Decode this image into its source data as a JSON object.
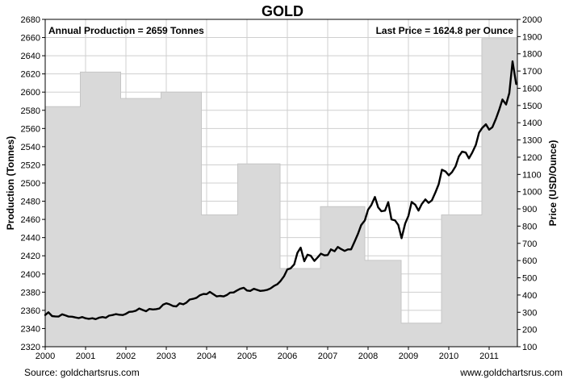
{
  "chart_data": {
    "type": "area",
    "title": "GOLD",
    "ylabel": "Production (Tonnes)",
    "y2label": "Price (USD/Ounce)",
    "xlim": [
      2000,
      2011.7
    ],
    "ylim": [
      2320,
      2680
    ],
    "y2lim": [
      100,
      2000
    ],
    "grid": true,
    "xticks": [
      "2000",
      "2001",
      "2002",
      "2003",
      "2004",
      "2005",
      "2006",
      "2007",
      "2008",
      "2009",
      "2010",
      "2011"
    ],
    "yticks": [
      "2320",
      "2340",
      "2360",
      "2380",
      "2400",
      "2420",
      "2440",
      "2460",
      "2480",
      "2500",
      "2520",
      "2540",
      "2560",
      "2580",
      "2600",
      "2620",
      "2640",
      "2660",
      "2680"
    ],
    "y2ticks": [
      "100",
      "200",
      "300",
      "400",
      "500",
      "600",
      "700",
      "800",
      "900",
      "1000",
      "1100",
      "1200",
      "1300",
      "1400",
      "1500",
      "1600",
      "1700",
      "1800",
      "1900",
      "2000"
    ],
    "annotations": {
      "left": "Annual Production = 2659 Tonnes",
      "right": "Last Price = 1624.8 per Ounce"
    },
    "footer": {
      "source": "Source:  goldchartsrus.com",
      "site": "www.goldchartsrus.com"
    },
    "series": [
      {
        "kind": "production",
        "axis": "left",
        "x": [
          2000,
          2000.87,
          2000.87,
          2001.87,
          2001.87,
          2002.87,
          2002.87,
          2003.87,
          2003.87,
          2004.77,
          2004.77,
          2005.82,
          2005.82,
          2006.82,
          2006.82,
          2007.92,
          2007.92,
          2008.82,
          2008.82,
          2009.82,
          2009.82,
          2010.82,
          2010.82,
          2011.7
        ],
        "y": [
          2584,
          2584,
          2622,
          2622,
          2593,
          2593,
          2600,
          2600,
          2465,
          2465,
          2521,
          2521,
          2406,
          2406,
          2474,
          2474,
          2415,
          2415,
          2346,
          2346,
          2465,
          2465,
          2659,
          2659
        ]
      },
      {
        "kind": "price",
        "axis": "right",
        "x": [
          2000.0,
          2000.08,
          2000.17,
          2000.25,
          2000.33,
          2000.42,
          2000.5,
          2000.58,
          2000.67,
          2000.75,
          2000.83,
          2000.92,
          2001.0,
          2001.08,
          2001.17,
          2001.25,
          2001.33,
          2001.42,
          2001.5,
          2001.58,
          2001.67,
          2001.75,
          2001.83,
          2001.92,
          2002.0,
          2002.08,
          2002.17,
          2002.25,
          2002.33,
          2002.42,
          2002.5,
          2002.58,
          2002.67,
          2002.75,
          2002.83,
          2002.92,
          2003.0,
          2003.08,
          2003.17,
          2003.25,
          2003.33,
          2003.42,
          2003.5,
          2003.58,
          2003.67,
          2003.75,
          2003.83,
          2003.92,
          2004.0,
          2004.08,
          2004.17,
          2004.25,
          2004.33,
          2004.42,
          2004.5,
          2004.58,
          2004.67,
          2004.75,
          2004.83,
          2004.92,
          2005.0,
          2005.08,
          2005.17,
          2005.25,
          2005.33,
          2005.42,
          2005.5,
          2005.58,
          2005.67,
          2005.75,
          2005.83,
          2005.92,
          2006.0,
          2006.08,
          2006.17,
          2006.25,
          2006.33,
          2006.42,
          2006.5,
          2006.58,
          2006.67,
          2006.75,
          2006.83,
          2006.92,
          2007.0,
          2007.08,
          2007.17,
          2007.25,
          2007.33,
          2007.42,
          2007.5,
          2007.58,
          2007.67,
          2007.75,
          2007.83,
          2007.92,
          2008.0,
          2008.08,
          2008.17,
          2008.25,
          2008.33,
          2008.42,
          2008.5,
          2008.58,
          2008.67,
          2008.75,
          2008.83,
          2008.92,
          2009.0,
          2009.08,
          2009.17,
          2009.25,
          2009.33,
          2009.42,
          2009.5,
          2009.58,
          2009.67,
          2009.75,
          2009.83,
          2009.92,
          2010.0,
          2010.08,
          2010.17,
          2010.25,
          2010.33,
          2010.42,
          2010.5,
          2010.58,
          2010.67,
          2010.75,
          2010.83,
          2010.92,
          2011.0,
          2011.08,
          2011.17,
          2011.25,
          2011.33,
          2011.42,
          2011.5,
          2011.58,
          2011.67
        ],
        "y": [
          284,
          300,
          278,
          276,
          275,
          288,
          282,
          275,
          274,
          270,
          266,
          272,
          265,
          262,
          265,
          260,
          268,
          272,
          268,
          280,
          284,
          289,
          286,
          284,
          291,
          302,
          304,
          309,
          322,
          313,
          306,
          319,
          316,
          318,
          322,
          344,
          352,
          346,
          336,
          334,
          352,
          346,
          356,
          374,
          378,
          384,
          398,
          406,
          405,
          418,
          404,
          392,
          395,
          392,
          400,
          414,
          415,
          426,
          436,
          442,
          426,
          424,
          436,
          430,
          424,
          426,
          430,
          438,
          453,
          462,
          481,
          510,
          549,
          555,
          578,
          645,
          675,
          596,
          634,
          628,
          598,
          618,
          640,
          630,
          632,
          665,
          654,
          679,
          667,
          656,
          665,
          665,
          712,
          755,
          806,
          833,
          895,
          922,
          969,
          909,
          886,
          890,
          939,
          839,
          833,
          806,
          730,
          815,
          859,
          940,
          924,
          890,
          928,
          955,
          935,
          949,
          996,
          1043,
          1127,
          1117,
          1095,
          1113,
          1148,
          1205,
          1232,
          1227,
          1193,
          1226,
          1271,
          1342,
          1370,
          1391,
          1360,
          1374,
          1424,
          1476,
          1535,
          1506,
          1572,
          1756,
          1624.8
        ]
      }
    ]
  }
}
